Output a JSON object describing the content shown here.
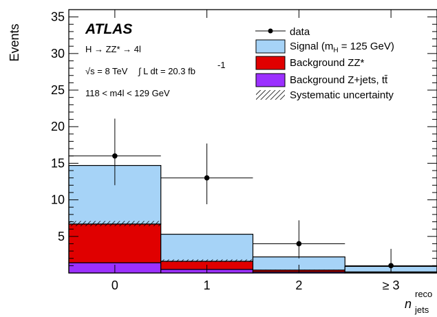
{
  "chart_data": {
    "type": "bar",
    "stacked": true,
    "ylabel": "Events",
    "xlabel_main": "n",
    "xlabel_sup": "reco",
    "xlabel_sub": "jets",
    "categories": [
      "0",
      "1",
      "2",
      "≥ 3"
    ],
    "ylim": [
      0,
      36
    ],
    "yticks": [
      5,
      10,
      15,
      20,
      25,
      30,
      35
    ],
    "series": [
      {
        "name": "Background Z+jets, tt̄",
        "color": "#9b30ff",
        "values": [
          1.4,
          0.5,
          0.15,
          0.05
        ]
      },
      {
        "name": "Background ZZ*",
        "color": "#e00000",
        "values": [
          5.3,
          1.1,
          0.25,
          0.1
        ]
      },
      {
        "name": "Signal (mH = 125 GeV)",
        "color": "#a6d3f7",
        "values": [
          8.0,
          3.7,
          1.8,
          0.75
        ]
      }
    ],
    "systematic_uncertainty": {
      "name": "Systematic uncertainty",
      "background_band": [
        [
          6.4,
          7.1
        ],
        [
          1.5,
          1.85
        ],
        [
          0.35,
          0.45
        ],
        [
          0.13,
          0.18
        ]
      ]
    },
    "data": {
      "name": "data",
      "values": [
        16,
        13,
        4,
        1
      ],
      "err_low": [
        4.0,
        3.6,
        2.0,
        0.83
      ],
      "err_high": [
        5.1,
        4.7,
        3.2,
        2.3
      ]
    },
    "legend_position": "top-right",
    "annotations": {
      "atlas": "ATLAS",
      "process": "H → ZZ* → 4l",
      "energy": "√s = 8 TeV",
      "lumi": "∫ L dt = 20.3 fb",
      "lumi_sup": "-1",
      "mass_window": "118 < m4l < 129 GeV"
    },
    "legend": {
      "data": "data",
      "signal": "Signal (m",
      "signal_sub": "H",
      "signal_tail": " = 125 GeV)",
      "zz": "Background ZZ*",
      "zjets": "Background Z+jets, tt̄",
      "syst": "Systematic uncertainty"
    }
  }
}
